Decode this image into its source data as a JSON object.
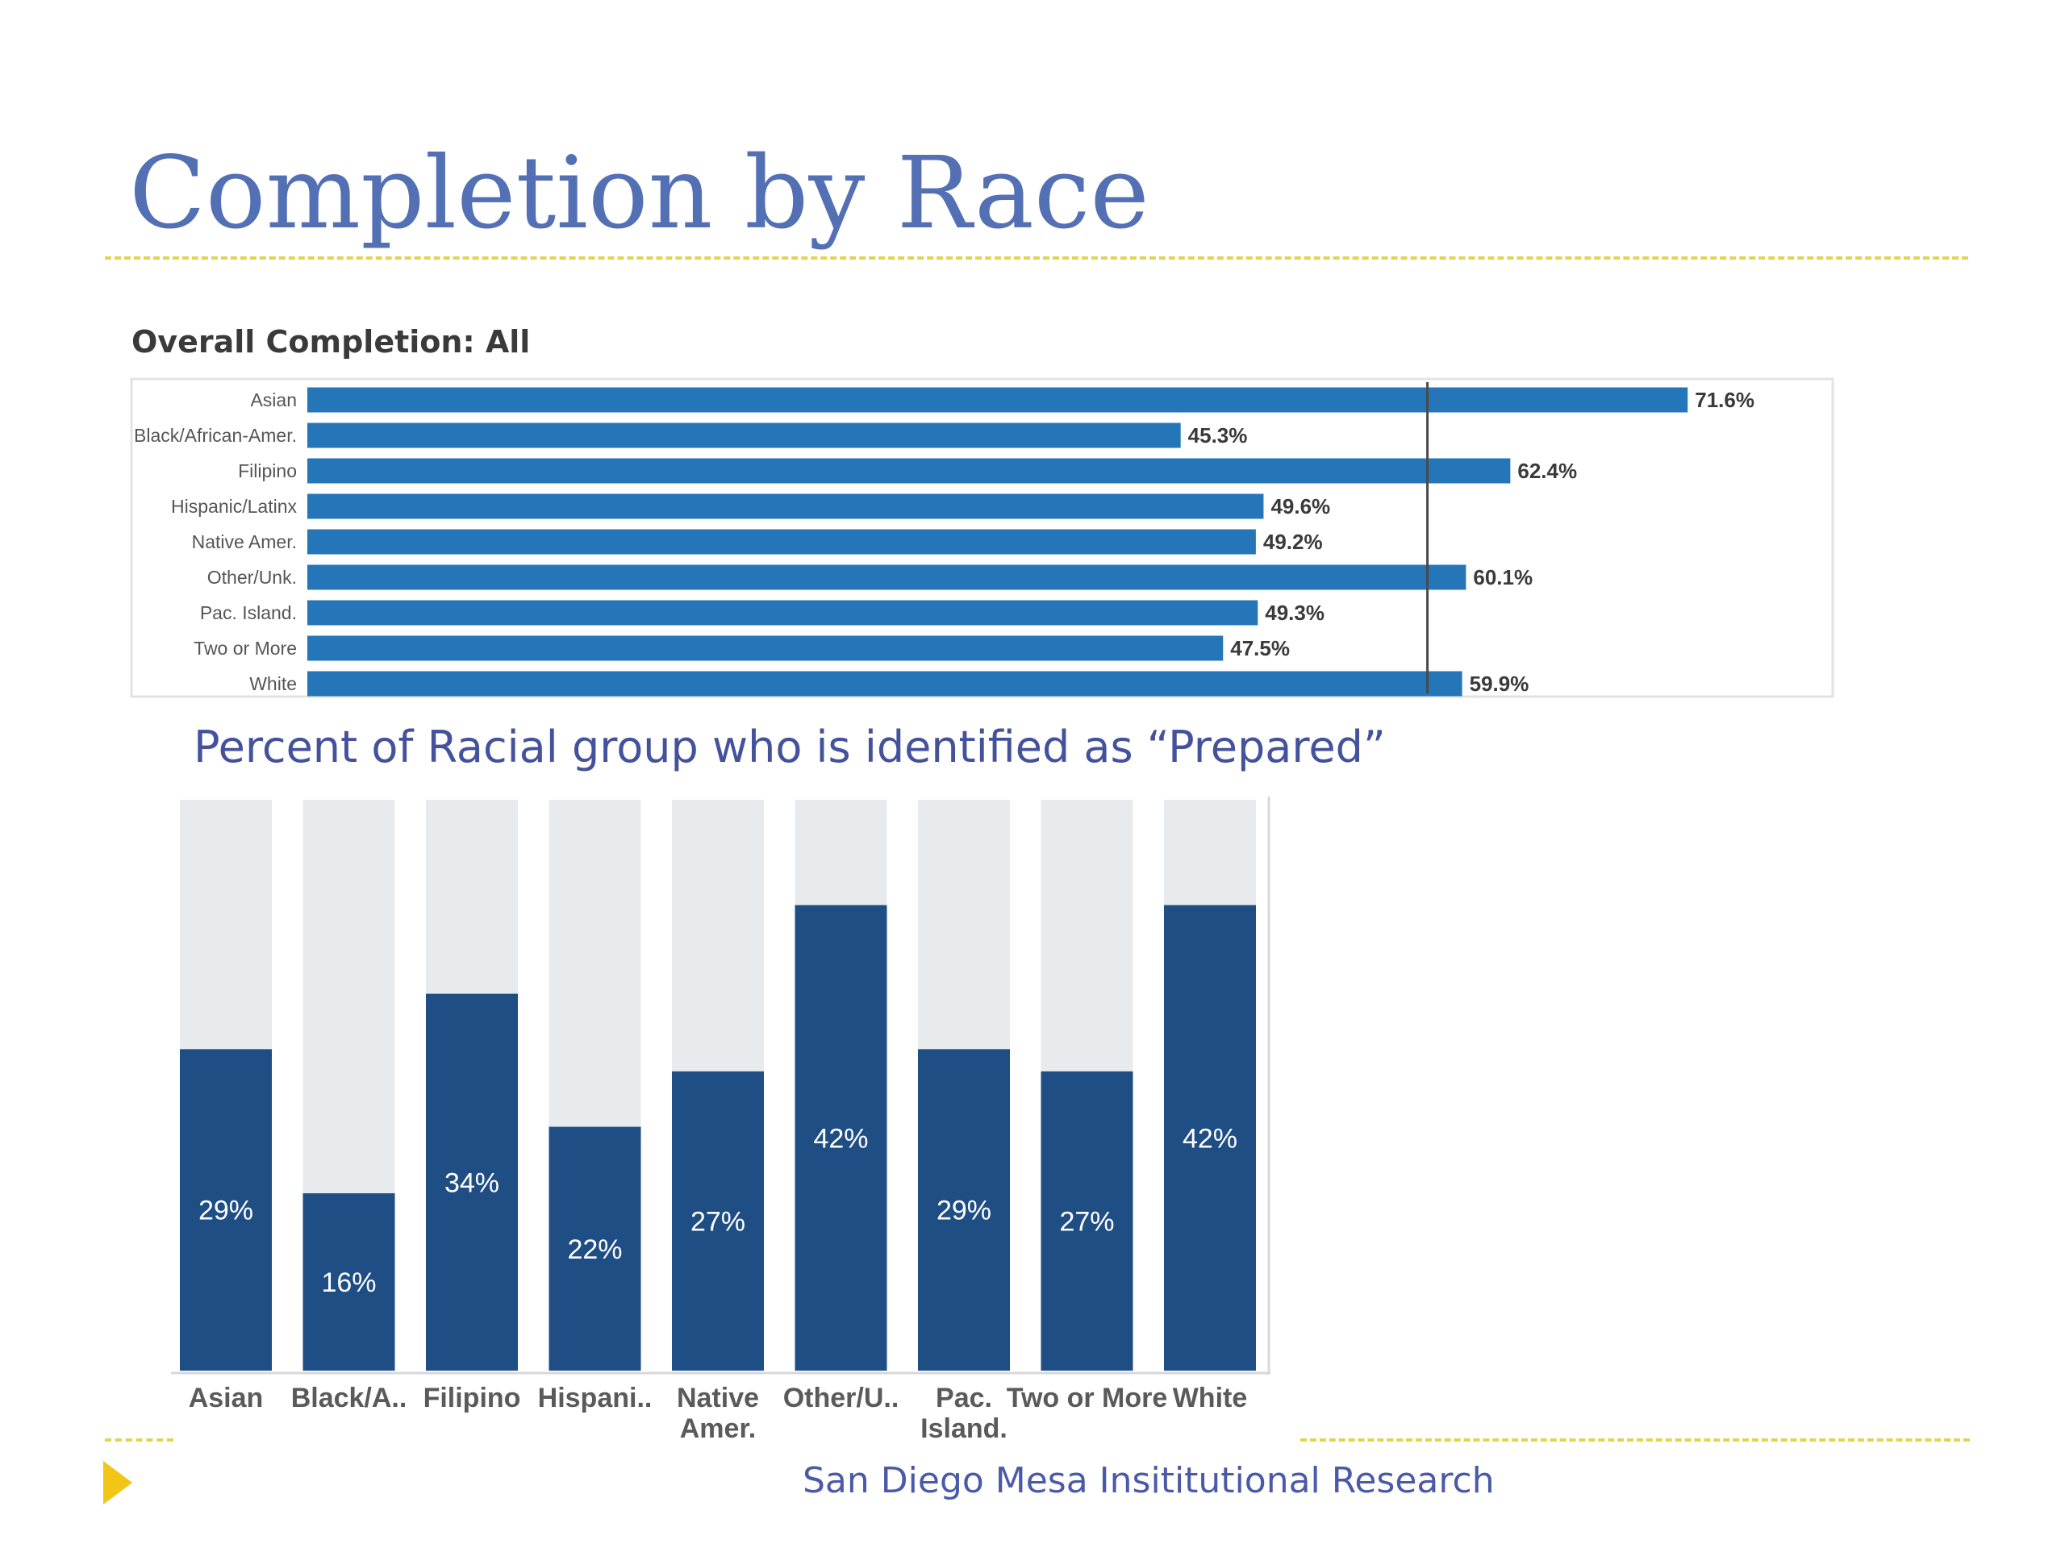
{
  "slide": {
    "title": "Completion by Race",
    "footer": "San Diego Mesa Insititutional Research",
    "accent_color": "#f3c515",
    "rule_color": "#e3d450",
    "title_color": "#5470b5"
  },
  "chart_data": [
    {
      "type": "bar",
      "orientation": "horizontal",
      "title": "Overall Completion: All",
      "categories": [
        "Asian",
        "Black/African-Amer.",
        "Filipino",
        "Hispanic/Latinx",
        "Native Amer.",
        "Other/Unk.",
        "Pac. Island.",
        "Two or More",
        "White"
      ],
      "values": [
        71.6,
        45.3,
        62.4,
        49.6,
        49.2,
        60.1,
        49.3,
        47.5,
        59.9
      ],
      "value_labels": [
        "71.6%",
        "45.3%",
        "62.4%",
        "49.6%",
        "49.2%",
        "60.1%",
        "49.3%",
        "47.5%",
        "59.9%"
      ],
      "xlim": [
        0,
        80
      ],
      "reference_line": 58.1,
      "bar_color": "#2576b8",
      "grid": false
    },
    {
      "type": "bar",
      "orientation": "vertical",
      "stacked_to_full": true,
      "title": "Percent of Racial group who is identified as “Prepared”",
      "categories": [
        "Asian",
        "Black/A..",
        "Filipino",
        "Hispani..",
        "Native Amer.",
        "Other/U..",
        "Pac. Island.",
        "Two or More",
        "White"
      ],
      "values": [
        29,
        16,
        34,
        22,
        27,
        42,
        29,
        27,
        42
      ],
      "value_labels": [
        "29%",
        "16%",
        "34%",
        "22%",
        "27%",
        "42%",
        "29%",
        "27%",
        "42%"
      ],
      "ylim": [
        0,
        51.5
      ],
      "bar_color": "#1f4e85",
      "background_bar_color": "#e8ebee",
      "grid": false
    }
  ]
}
